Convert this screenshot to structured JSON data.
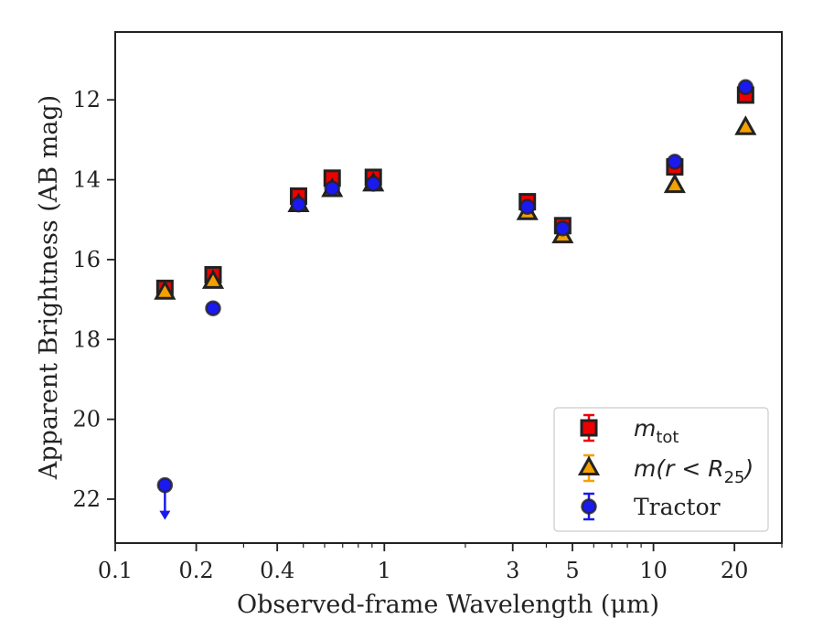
{
  "chart_data": {
    "type": "scatter",
    "xlabel": "Observed-frame Wavelength (μm)",
    "ylabel": "Apparent Brightness (AB mag)",
    "x_scale": "log",
    "x_range": [
      0.1,
      30
    ],
    "y_range": [
      23.1,
      10.3
    ],
    "y_inverted": true,
    "x_ticks": [
      {
        "value": 0.1,
        "label": "0.1"
      },
      {
        "value": 0.2,
        "label": "0.2"
      },
      {
        "value": 0.4,
        "label": "0.4"
      },
      {
        "value": 1,
        "label": "1"
      },
      {
        "value": 3,
        "label": "3"
      },
      {
        "value": 5,
        "label": "5"
      },
      {
        "value": 10,
        "label": "10"
      },
      {
        "value": 20,
        "label": "20"
      }
    ],
    "y_ticks": [
      {
        "value": 12,
        "label": "12"
      },
      {
        "value": 14,
        "label": "14"
      },
      {
        "value": 16,
        "label": "16"
      },
      {
        "value": 18,
        "label": "18"
      },
      {
        "value": 20,
        "label": "20"
      },
      {
        "value": 22,
        "label": "22"
      }
    ],
    "grid": false,
    "legend_position": "lower-right",
    "series": [
      {
        "key": "mtot",
        "name": "m_tot",
        "marker": "square",
        "color": "#ee0000",
        "points": [
          {
            "x": 0.153,
            "y": 16.72
          },
          {
            "x": 0.231,
            "y": 16.38
          },
          {
            "x": 0.48,
            "y": 14.41
          },
          {
            "x": 0.64,
            "y": 13.96
          },
          {
            "x": 0.91,
            "y": 13.94
          },
          {
            "x": 3.4,
            "y": 14.55
          },
          {
            "x": 4.6,
            "y": 15.15
          },
          {
            "x": 12.0,
            "y": 13.68
          },
          {
            "x": 22.0,
            "y": 11.88
          }
        ]
      },
      {
        "key": "mr25",
        "name": "m(r < R25)",
        "marker": "triangle",
        "color": "#f5a000",
        "points": [
          {
            "x": 0.153,
            "y": 16.82
          },
          {
            "x": 0.231,
            "y": 16.55
          },
          {
            "x": 0.48,
            "y": 14.63
          },
          {
            "x": 0.64,
            "y": 14.25
          },
          {
            "x": 0.91,
            "y": 14.11
          },
          {
            "x": 3.4,
            "y": 14.83
          },
          {
            "x": 4.6,
            "y": 15.41
          },
          {
            "x": 12.0,
            "y": 14.15
          },
          {
            "x": 22.0,
            "y": 12.7
          }
        ]
      },
      {
        "key": "tractor",
        "name": "Tractor",
        "marker": "circle",
        "color": "#1a1aee",
        "points": [
          {
            "x": 0.153,
            "y": 21.65,
            "upper_limit": true
          },
          {
            "x": 0.231,
            "y": 17.22
          },
          {
            "x": 0.48,
            "y": 14.62
          },
          {
            "x": 0.64,
            "y": 14.22
          },
          {
            "x": 0.91,
            "y": 14.1
          },
          {
            "x": 3.4,
            "y": 14.68
          },
          {
            "x": 4.6,
            "y": 15.22
          },
          {
            "x": 12.0,
            "y": 13.55
          },
          {
            "x": 22.0,
            "y": 11.68
          }
        ]
      }
    ],
    "legend": [
      {
        "key": "mtot",
        "math_base": "m",
        "math_sub": "tot"
      },
      {
        "key": "mr25",
        "math_base": "m(r < R",
        "math_sub": "25",
        "math_tail": ")"
      },
      {
        "key": "tractor",
        "text": "Tractor"
      }
    ]
  }
}
